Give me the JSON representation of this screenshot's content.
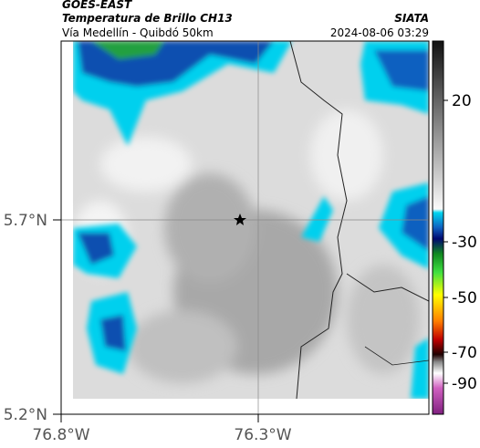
{
  "header": {
    "title": "GOES-EAST",
    "subtitle": "Temperatura de Brillo CH13",
    "source": "SIATA",
    "route": "Vía Medellín - Quibdó 50km",
    "timestamp": "2024-08-06 03:29"
  },
  "axes": {
    "y_labels": [
      "5.7°N",
      "5.2°N"
    ],
    "x_labels": [
      "76.8°W",
      "76.3°W"
    ]
  },
  "colorbar": {
    "ticks": [
      20,
      -30,
      -50,
      -70,
      -90
    ]
  }
}
